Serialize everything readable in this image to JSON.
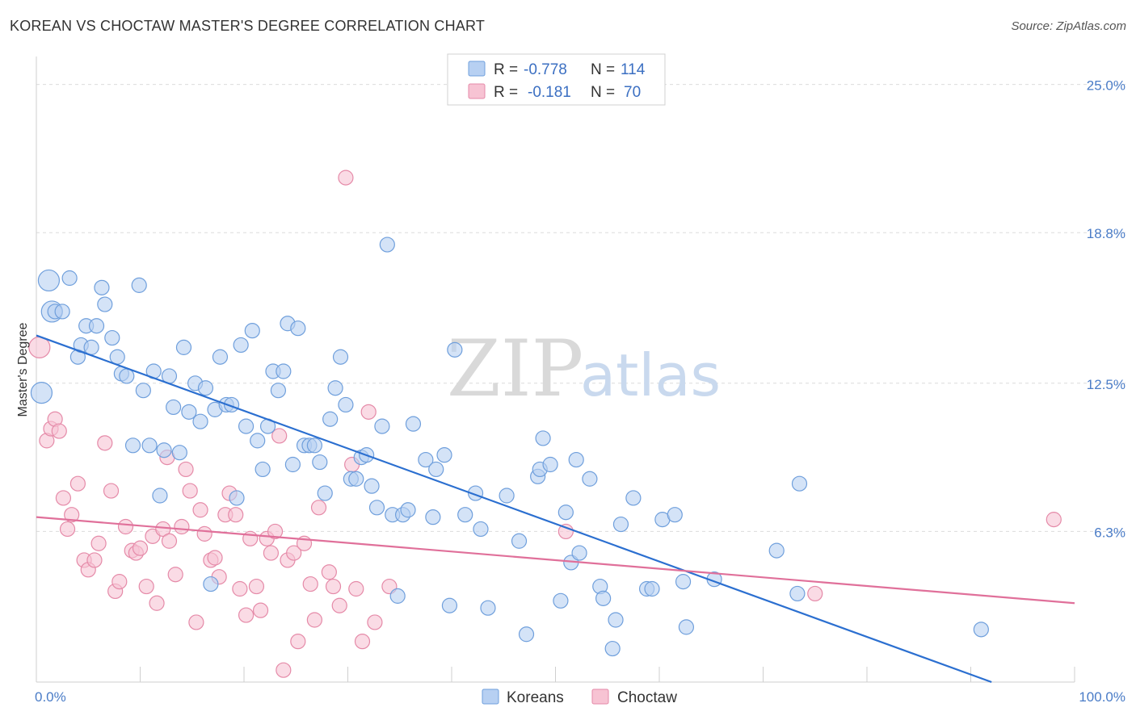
{
  "title": "KOREAN VS CHOCTAW MASTER'S DEGREE CORRELATION CHART",
  "source": "Source: ZipAtlas.com",
  "watermark": {
    "zip": "ZIP",
    "atlas": "atlas"
  },
  "colors": {
    "blue_fill": "#b7d0f2",
    "blue_stroke": "#6f9fdc",
    "blue_line": "#2b6fd0",
    "pink_fill": "#f7c3d3",
    "pink_stroke": "#e58aa8",
    "pink_line": "#e0709a",
    "grid": "#dcdcdc",
    "tick": "#4a7cc7"
  },
  "legend": {
    "rows": [
      {
        "r_label": "R =",
        "r_value": "-0.778",
        "n_label": "N =",
        "n_value": "114"
      },
      {
        "r_label": "R =",
        "r_value": "-0.181",
        "n_label": "N =",
        "n_value": "70"
      }
    ]
  },
  "chart_data": {
    "type": "scatter",
    "xlabel": "",
    "ylabel": "Master's Degree",
    "xlim": [
      0,
      100
    ],
    "ylim": [
      0,
      26
    ],
    "x_tick_labels": [
      "0.0%",
      "100.0%"
    ],
    "y_ticks": [
      6.3,
      12.5,
      18.8,
      25.0
    ],
    "y_tick_labels": [
      "6.3%",
      "12.5%",
      "18.8%",
      "25.0%"
    ],
    "grid": true,
    "legend_position": "top-center",
    "series": [
      {
        "name": "Koreans",
        "trend": {
          "x0": 0,
          "y0": 14.5,
          "x1": 92,
          "y1": 0
        },
        "points": [
          [
            0.5,
            12.1,
            2
          ],
          [
            1.2,
            16.8,
            2
          ],
          [
            1.5,
            15.5,
            2
          ],
          [
            1.8,
            15.5,
            1
          ],
          [
            2.5,
            15.5,
            1
          ],
          [
            3.2,
            16.9,
            1
          ],
          [
            4,
            13.6,
            1
          ],
          [
            4.3,
            14.1,
            1
          ],
          [
            4.8,
            14.9,
            1
          ],
          [
            5.3,
            14,
            1
          ],
          [
            5.8,
            14.9,
            1
          ],
          [
            6.3,
            16.5,
            1
          ],
          [
            6.6,
            15.8,
            1
          ],
          [
            7.3,
            14.4,
            1
          ],
          [
            7.8,
            13.6,
            1
          ],
          [
            8.2,
            12.9,
            1
          ],
          [
            8.7,
            12.8,
            1
          ],
          [
            9.3,
            9.9,
            1
          ],
          [
            9.9,
            16.6,
            1
          ],
          [
            10.3,
            12.2,
            1
          ],
          [
            10.9,
            9.9,
            1
          ],
          [
            11.3,
            13,
            1
          ],
          [
            11.9,
            7.8,
            1
          ],
          [
            12.3,
            9.7,
            1
          ],
          [
            12.8,
            12.8,
            1
          ],
          [
            13.2,
            11.5,
            1
          ],
          [
            13.8,
            9.6,
            1
          ],
          [
            14.2,
            14,
            1
          ],
          [
            14.7,
            11.3,
            1
          ],
          [
            15.3,
            12.5,
            1
          ],
          [
            15.8,
            10.9,
            1
          ],
          [
            16.3,
            12.3,
            1
          ],
          [
            16.8,
            4.1,
            1
          ],
          [
            17.2,
            11.4,
            1
          ],
          [
            17.7,
            13.6,
            1
          ],
          [
            18.3,
            11.6,
            1
          ],
          [
            18.8,
            11.6,
            1
          ],
          [
            19.3,
            7.7,
            1
          ],
          [
            19.7,
            14.1,
            1
          ],
          [
            20.2,
            10.7,
            1
          ],
          [
            20.8,
            14.7,
            1
          ],
          [
            21.3,
            10.1,
            1
          ],
          [
            21.8,
            8.9,
            1
          ],
          [
            22.3,
            10.7,
            1
          ],
          [
            22.8,
            13,
            1
          ],
          [
            23.3,
            12.2,
            1
          ],
          [
            23.8,
            13,
            1
          ],
          [
            24.2,
            15,
            1
          ],
          [
            24.7,
            9.1,
            1
          ],
          [
            25.2,
            14.8,
            1
          ],
          [
            25.8,
            9.9,
            1
          ],
          [
            26.3,
            9.9,
            1
          ],
          [
            26.8,
            9.9,
            1
          ],
          [
            27.3,
            9.2,
            1
          ],
          [
            27.8,
            7.9,
            1
          ],
          [
            28.3,
            11,
            1
          ],
          [
            28.8,
            12.3,
            1
          ],
          [
            29.3,
            13.6,
            1
          ],
          [
            29.8,
            11.6,
            1
          ],
          [
            30.3,
            8.5,
            1
          ],
          [
            30.8,
            8.5,
            1
          ],
          [
            31.3,
            9.4,
            1
          ],
          [
            31.8,
            9.5,
            1
          ],
          [
            32.3,
            8.2,
            1
          ],
          [
            32.8,
            7.3,
            1
          ],
          [
            33.3,
            10.7,
            1
          ],
          [
            33.8,
            18.3,
            1
          ],
          [
            34.3,
            7,
            1
          ],
          [
            34.8,
            3.6,
            1
          ],
          [
            35.3,
            7,
            1
          ],
          [
            35.8,
            7.2,
            1
          ],
          [
            36.3,
            10.8,
            1
          ],
          [
            37.5,
            9.3,
            1
          ],
          [
            38.2,
            6.9,
            1
          ],
          [
            38.5,
            8.9,
            1
          ],
          [
            39.3,
            9.5,
            1
          ],
          [
            39.8,
            3.2,
            1
          ],
          [
            40.3,
            13.9,
            1
          ],
          [
            41.3,
            7,
            1
          ],
          [
            42.3,
            7.9,
            1
          ],
          [
            42.8,
            6.4,
            1
          ],
          [
            43.5,
            3.1,
            1
          ],
          [
            45.3,
            7.8,
            1
          ],
          [
            46.5,
            5.9,
            1
          ],
          [
            47.2,
            2,
            1
          ],
          [
            48.3,
            8.6,
            1
          ],
          [
            48.5,
            8.9,
            1
          ],
          [
            48.8,
            10.2,
            1
          ],
          [
            49.5,
            9.1,
            1
          ],
          [
            50.5,
            3.4,
            1
          ],
          [
            51,
            7.1,
            1
          ],
          [
            51.5,
            5,
            1
          ],
          [
            52,
            9.3,
            1
          ],
          [
            52.3,
            5.4,
            1
          ],
          [
            53.3,
            8.5,
            1
          ],
          [
            54.3,
            4,
            1
          ],
          [
            54.6,
            3.5,
            1
          ],
          [
            55.5,
            1.4,
            1
          ],
          [
            55.8,
            2.6,
            1
          ],
          [
            56.3,
            6.6,
            1
          ],
          [
            57.5,
            7.7,
            1
          ],
          [
            58.8,
            3.9,
            1
          ],
          [
            59.3,
            3.9,
            1
          ],
          [
            60.3,
            6.8,
            1
          ],
          [
            61.5,
            7,
            1
          ],
          [
            62.3,
            4.2,
            1
          ],
          [
            62.6,
            2.3,
            1
          ],
          [
            65.3,
            4.3,
            1
          ],
          [
            71.3,
            5.5,
            1
          ],
          [
            73.3,
            3.7,
            1
          ],
          [
            73.5,
            8.3,
            1
          ],
          [
            91,
            2.2,
            1
          ]
        ]
      },
      {
        "name": "Choctaw",
        "trend": {
          "x0": 0,
          "y0": 6.9,
          "x1": 100,
          "y1": 3.3
        },
        "points": [
          [
            0.3,
            14,
            2
          ],
          [
            1,
            10.1,
            1
          ],
          [
            1.4,
            10.6,
            1
          ],
          [
            1.8,
            11,
            1
          ],
          [
            2.2,
            10.5,
            1
          ],
          [
            2.6,
            7.7,
            1
          ],
          [
            3,
            6.4,
            1
          ],
          [
            3.4,
            7,
            1
          ],
          [
            4,
            8.3,
            1
          ],
          [
            4.6,
            5.1,
            1
          ],
          [
            5,
            4.7,
            1
          ],
          [
            5.6,
            5.1,
            1
          ],
          [
            6,
            5.8,
            1
          ],
          [
            6.6,
            10,
            1
          ],
          [
            7.2,
            8,
            1
          ],
          [
            7.6,
            3.8,
            1
          ],
          [
            8,
            4.2,
            1
          ],
          [
            8.6,
            6.5,
            1
          ],
          [
            9.2,
            5.5,
            1
          ],
          [
            9.6,
            5.4,
            1
          ],
          [
            10,
            5.6,
            1
          ],
          [
            10.6,
            4,
            1
          ],
          [
            11.2,
            6.1,
            1
          ],
          [
            11.6,
            3.3,
            1
          ],
          [
            12.2,
            6.4,
            1
          ],
          [
            12.6,
            9.4,
            1
          ],
          [
            12.8,
            5.9,
            1
          ],
          [
            13.4,
            4.5,
            1
          ],
          [
            14,
            6.5,
            1
          ],
          [
            14.4,
            8.9,
            1
          ],
          [
            14.8,
            8,
            1
          ],
          [
            15.4,
            2.5,
            1
          ],
          [
            15.8,
            7.2,
            1
          ],
          [
            16.2,
            6.2,
            1
          ],
          [
            16.8,
            5.1,
            1
          ],
          [
            17.2,
            5.2,
            1
          ],
          [
            17.6,
            4.4,
            1
          ],
          [
            18.2,
            7,
            1
          ],
          [
            18.6,
            7.9,
            1
          ],
          [
            19.2,
            7,
            1
          ],
          [
            19.6,
            3.9,
            1
          ],
          [
            20.2,
            2.8,
            1
          ],
          [
            20.6,
            6,
            1
          ],
          [
            21.2,
            4,
            1
          ],
          [
            21.6,
            3,
            1
          ],
          [
            22.2,
            6,
            1
          ],
          [
            22.6,
            5.4,
            1
          ],
          [
            23,
            6.3,
            1
          ],
          [
            23.4,
            10.3,
            1
          ],
          [
            23.8,
            0.5,
            1
          ],
          [
            24.2,
            5.1,
            1
          ],
          [
            24.8,
            5.4,
            1
          ],
          [
            25.2,
            1.7,
            1
          ],
          [
            25.8,
            5.8,
            1
          ],
          [
            26.4,
            4.1,
            1
          ],
          [
            26.8,
            2.6,
            1
          ],
          [
            27.2,
            7.3,
            1
          ],
          [
            28.2,
            4.6,
            1
          ],
          [
            28.6,
            4,
            1
          ],
          [
            29.2,
            3.2,
            1
          ],
          [
            29.8,
            21.1,
            1
          ],
          [
            30.4,
            9.1,
            1
          ],
          [
            30.8,
            3.9,
            1
          ],
          [
            31.4,
            1.7,
            1
          ],
          [
            32,
            11.3,
            1
          ],
          [
            32.6,
            2.5,
            1
          ],
          [
            34,
            4,
            1
          ],
          [
            51,
            6.3,
            1
          ],
          [
            75,
            3.7,
            1
          ],
          [
            98,
            6.8,
            1
          ]
        ]
      }
    ]
  }
}
